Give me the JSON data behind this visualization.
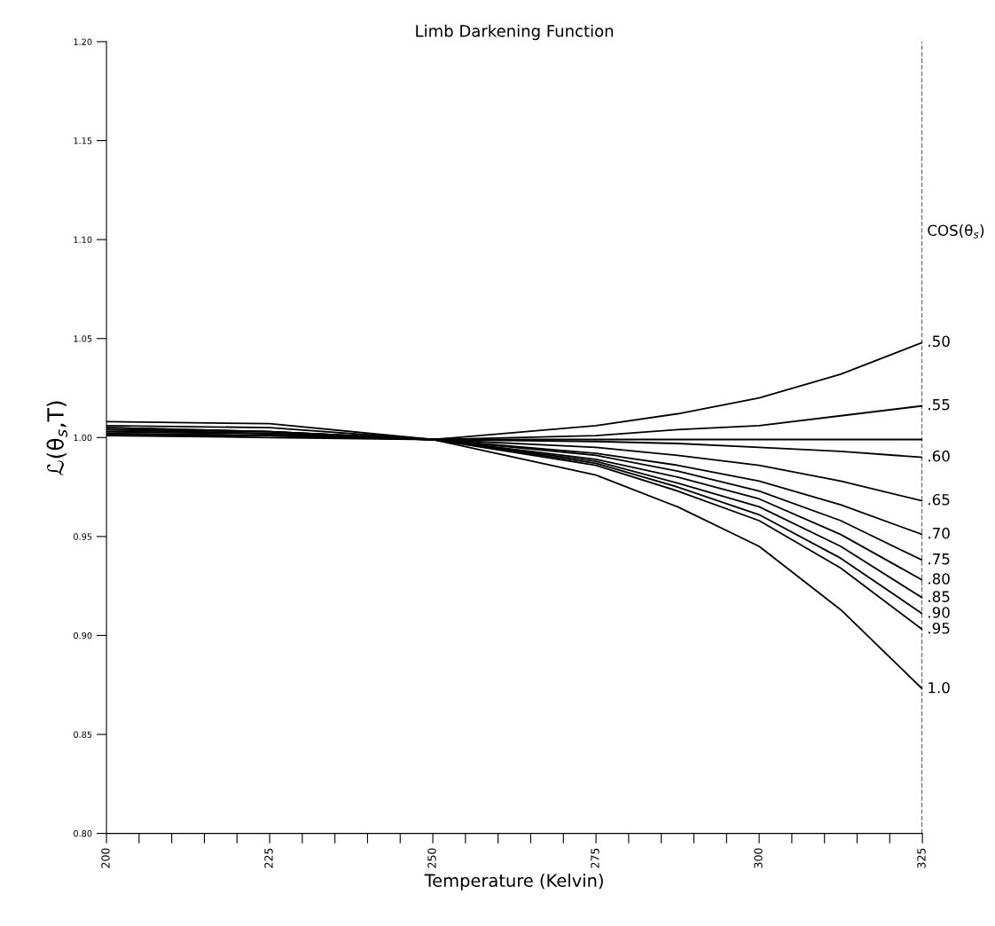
{
  "chart_data": {
    "type": "line",
    "title": "Limb Darkening Function",
    "xlabel": "Temperature (Kelvin)",
    "ylabel": "ℒ(θ$_{s}$,T)",
    "legend_title": "COS(θ$_{s}$)",
    "x": [
      200,
      225,
      250,
      275,
      287.5,
      300,
      312.5,
      325
    ],
    "series": [
      {
        "name": ".50",
        "color": "#000000",
        "values": [
          1.008,
          1.007,
          0.999,
          1.006,
          1.012,
          1.02,
          1.032,
          1.048
        ]
      },
      {
        "name": ".55",
        "color": "#000000",
        "values": [
          1.006,
          1.005,
          0.999,
          1.001,
          1.004,
          1.006,
          1.011,
          1.016
        ]
      },
      {
        "color": "#000000",
        "values": [
          1.005,
          1.003,
          0.999,
          0.999,
          0.999,
          0.999,
          0.999,
          0.999
        ]
      },
      {
        "name": ".60",
        "color": "#000000",
        "values": [
          1.005,
          1.003,
          0.999,
          0.998,
          0.997,
          0.995,
          0.993,
          0.99
        ]
      },
      {
        "name": ".65",
        "color": "#000000",
        "values": [
          1.004,
          1.003,
          0.999,
          0.995,
          0.991,
          0.986,
          0.978,
          0.968
        ]
      },
      {
        "name": ".70",
        "color": "#000000",
        "values": [
          1.004,
          1.002,
          0.999,
          0.992,
          0.986,
          0.978,
          0.966,
          0.951
        ]
      },
      {
        "name": ".75",
        "color": "#000000",
        "values": [
          1.003,
          1.002,
          0.999,
          0.991,
          0.983,
          0.973,
          0.958,
          0.938
        ]
      },
      {
        "name": ".80",
        "color": "#000000",
        "values": [
          1.003,
          1.002,
          0.999,
          0.989,
          0.98,
          0.969,
          0.951,
          0.928
        ]
      },
      {
        "name": ".85",
        "color": "#000000",
        "values": [
          1.002,
          1.001,
          0.999,
          0.988,
          0.977,
          0.965,
          0.945,
          0.919
        ]
      },
      {
        "name": ".90",
        "color": "#000000",
        "values": [
          1.002,
          1.001,
          0.999,
          0.987,
          0.975,
          0.961,
          0.939,
          0.911
        ]
      },
      {
        "name": ".95",
        "color": "#000000",
        "values": [
          1.001,
          1.001,
          0.999,
          0.986,
          0.973,
          0.958,
          0.934,
          0.903
        ]
      },
      {
        "name": "1.0",
        "color": "#000000",
        "values": [
          1.001,
          1.0,
          0.999,
          0.981,
          0.965,
          0.945,
          0.913,
          0.873
        ]
      }
    ],
    "xlim": [
      200,
      325
    ],
    "xticks": [
      200,
      {
        "value": 205,
        "label": null
      },
      {
        "value": 210,
        "label": null
      },
      {
        "value": 215,
        "label": null
      },
      {
        "value": 220,
        "label": null
      },
      225,
      {
        "value": 230,
        "label": null
      },
      {
        "value": 235,
        "label": null
      },
      {
        "value": 240,
        "label": null
      },
      {
        "value": 245,
        "label": null
      },
      250,
      {
        "value": 255,
        "label": null
      },
      {
        "value": 260,
        "label": null
      },
      {
        "value": 265,
        "label": null
      },
      {
        "value": 270,
        "label": null
      },
      275,
      {
        "value": 280,
        "label": null
      },
      {
        "value": 285,
        "label": null
      },
      {
        "value": 290,
        "label": null
      },
      {
        "value": 295,
        "label": null
      },
      300,
      {
        "value": 305,
        "label": null
      },
      {
        "value": 310,
        "label": null
      },
      {
        "value": 315,
        "label": null
      },
      {
        "value": 320,
        "label": null
      },
      325
    ],
    "ylim": [
      0.8,
      1.2
    ],
    "yticks": [
      {
        "value": 0.8,
        "label": "0.80"
      },
      0.85,
      {
        "value": 0.9,
        "label": "0.90"
      },
      0.95,
      {
        "value": 1.0,
        "label": "1.00"
      },
      1.05,
      {
        "value": 1.1,
        "label": "1.10"
      },
      1.15,
      {
        "value": 1.2,
        "label": "1.20"
      }
    ],
    "ref_lines": [
      {
        "axis": "x",
        "value": 325,
        "line_style": "dashed",
        "color": "#000000"
      }
    ],
    "grid": false,
    "legend": false,
    "marker": "none",
    "line_style": "solid"
  }
}
